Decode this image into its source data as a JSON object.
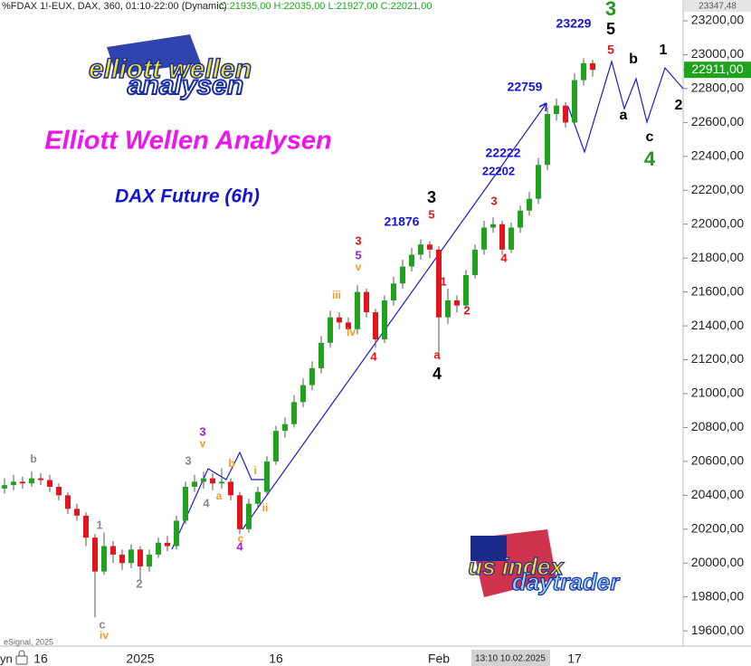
{
  "chart_data": {
    "type": "candlestick",
    "header": "%FDAX 1!-EUX, DAX, 360, 01:10-22:00 (Dynamic)",
    "ohlc_label": "O:21935,00 H:22035,00 L:21927,00 C:22021,00",
    "title": "Elliott Wellen Analysen",
    "subtitle": "DAX Future (6h)",
    "logo_top": [
      "elliott wellen",
      "analysen"
    ],
    "logo_bottom": [
      "us index",
      "daytrader"
    ],
    "source": "eSignal, 2025",
    "axis_top_label": "23347,48",
    "last_price_label": "22911,00",
    "crosshair_label": "13:10 10.02.2025",
    "axis_left_cut": "yn",
    "up_color": "#1fa31f",
    "down_color": "#e3141b",
    "categories": [
      null,
      null,
      null,
      null,
      "16",
      null,
      null,
      null,
      null,
      null,
      null,
      null,
      null,
      null,
      null,
      "2025",
      null,
      null,
      null,
      null,
      null,
      null,
      null,
      null,
      null,
      null,
      null,
      null,
      null,
      null,
      "16",
      null,
      null,
      null,
      null,
      null,
      null,
      null,
      null,
      null,
      null,
      null,
      null,
      null,
      null,
      null,
      null,
      null,
      "Feb",
      null,
      null,
      null,
      null,
      null,
      null,
      null,
      null,
      null,
      null,
      null,
      null,
      null,
      null,
      "17",
      null,
      null
    ],
    "open": [
      20440,
      20460,
      20480,
      20470,
      20500,
      20490,
      20450,
      20400,
      20320,
      20280,
      20150,
      19950,
      20100,
      20050,
      20000,
      20080,
      19980,
      20050,
      20120,
      20100,
      20250,
      20450,
      20480,
      20500,
      20470,
      20480,
      20400,
      20200,
      20350,
      20420,
      20600,
      20780,
      20820,
      20950,
      21050,
      21150,
      21300,
      21450,
      21420,
      21380,
      21600,
      21480,
      21320,
      21550,
      21650,
      21750,
      21820,
      21880,
      21850,
      21450,
      21550,
      21520,
      21700,
      21850,
      21980,
      22000,
      21850,
      21980,
      22080,
      22150,
      22350,
      22650,
      22700,
      22600,
      22850,
      22950
    ],
    "high": [
      20500,
      20520,
      20510,
      20540,
      20530,
      20520,
      20470,
      20420,
      20350,
      20300,
      20170,
      20180,
      20130,
      20080,
      20110,
      20100,
      20080,
      20150,
      20160,
      20280,
      20480,
      20520,
      20540,
      20530,
      20560,
      20500,
      20420,
      20380,
      20450,
      20630,
      20810,
      20860,
      20990,
      21090,
      21190,
      21340,
      21490,
      21480,
      21450,
      21640,
      21620,
      21500,
      21580,
      21690,
      21790,
      21860,
      21910,
      21900,
      21870,
      21620,
      21580,
      21730,
      21880,
      22020,
      22040,
      22020,
      22010,
      22110,
      22190,
      22390,
      22690,
      22740,
      22720,
      22890,
      22980,
      22970
    ],
    "low": [
      20410,
      20430,
      20440,
      20450,
      20460,
      20420,
      20370,
      20290,
      20250,
      20100,
      19680,
      19930,
      20000,
      19960,
      19970,
      19900,
      19950,
      20030,
      20070,
      20080,
      20230,
      20420,
      20440,
      20430,
      20440,
      20370,
      20170,
      20180,
      20320,
      20400,
      20580,
      20740,
      20800,
      20920,
      21020,
      21120,
      21270,
      21380,
      21340,
      21350,
      21450,
      21270,
      21300,
      21520,
      21620,
      21720,
      21790,
      21800,
      21200,
      21410,
      21480,
      21500,
      21680,
      21820,
      21950,
      21820,
      21830,
      21950,
      22050,
      22120,
      22320,
      22610,
      22570,
      22580,
      22820,
      22870
    ],
    "close": [
      20460,
      20480,
      20470,
      20500,
      20490,
      20450,
      20400,
      20320,
      20280,
      20150,
      19950,
      20100,
      20050,
      20000,
      20080,
      19980,
      20050,
      20120,
      20100,
      20250,
      20450,
      20480,
      20500,
      20470,
      20480,
      20400,
      20200,
      20350,
      20420,
      20600,
      20780,
      20820,
      20950,
      21050,
      21150,
      21300,
      21450,
      21420,
      21380,
      21600,
      21480,
      21320,
      21550,
      21650,
      21750,
      21820,
      21880,
      21850,
      21450,
      21550,
      21520,
      21700,
      21850,
      21980,
      22000,
      21850,
      21980,
      22080,
      22150,
      22350,
      22650,
      22700,
      22600,
      22850,
      22950,
      22911
    ],
    "ylim": [
      19510,
      23323
    ],
    "yticks": [
      {
        "value": 19600,
        "label": "19600,00"
      },
      {
        "value": 19800,
        "label": "19800,00"
      },
      {
        "value": 20000,
        "label": "20000,00"
      },
      {
        "value": 20200,
        "label": "20200,00"
      },
      {
        "value": 20400,
        "label": "20400,00"
      },
      {
        "value": 20600,
        "label": "20600,00"
      },
      {
        "value": 20800,
        "label": "20800,00"
      },
      {
        "value": 21000,
        "label": "21000,00"
      },
      {
        "value": 21200,
        "label": "21200,00"
      },
      {
        "value": 21400,
        "label": "21400,00"
      },
      {
        "value": 21600,
        "label": "21600,00"
      },
      {
        "value": 21800,
        "label": "21800,00"
      },
      {
        "value": 22000,
        "label": "22000,00"
      },
      {
        "value": 22200,
        "label": "22200,00"
      },
      {
        "value": 22400,
        "label": "22400,00"
      },
      {
        "value": 22600,
        "label": "22600,00"
      },
      {
        "value": 22800,
        "label": "22800,00"
      },
      {
        "value": 23000,
        "label": "23000,00"
      },
      {
        "value": 23200,
        "label": "23200,00"
      }
    ],
    "annotations": [
      {
        "text": "b",
        "color": "#8a8a8a"
      },
      {
        "text": "1",
        "color": "#8a8a8a"
      },
      {
        "text": "c",
        "color": "#8a8a8a"
      },
      {
        "text": "iv",
        "color": "#f39a1e"
      },
      {
        "text": "2",
        "color": "#8a8a8a"
      },
      {
        "text": "3",
        "color": "#8a8a8a"
      },
      {
        "text": "4",
        "color": "#8a8a8a"
      },
      {
        "text": "3",
        "color": "#9b1fd6"
      },
      {
        "text": "v",
        "color": "#f39a1e"
      },
      {
        "text": "b",
        "color": "#f39a1e"
      },
      {
        "text": "a",
        "color": "#f39a1e"
      },
      {
        "text": "i",
        "color": "#f39a1e"
      },
      {
        "text": "ii",
        "color": "#f39a1e"
      },
      {
        "text": "c",
        "color": "#f39a1e"
      },
      {
        "text": "4",
        "color": "#9b1fd6"
      },
      {
        "text": "iii",
        "color": "#f39a1e"
      },
      {
        "text": "iv",
        "color": "#f39a1e"
      },
      {
        "text": "3",
        "color": "#e3141b"
      },
      {
        "text": "5",
        "color": "#9b1fd6"
      },
      {
        "text": "v",
        "color": "#f39a1e"
      },
      {
        "text": "4",
        "color": "#e3141b"
      },
      {
        "text": "21876",
        "color": "#1414e0"
      },
      {
        "text": "3",
        "color": "#000000"
      },
      {
        "text": "5",
        "color": "#e3141b"
      },
      {
        "text": "1",
        "color": "#e3141b"
      },
      {
        "text": "2",
        "color": "#e3141b"
      },
      {
        "text": "a",
        "color": "#e3141b"
      },
      {
        "text": "4",
        "color": "#000000"
      },
      {
        "text": "3",
        "color": "#e3141b"
      },
      {
        "text": "4",
        "color": "#e3141b"
      },
      {
        "text": "22222",
        "color": "#1414e0"
      },
      {
        "text": "22202",
        "color": "#1414e0"
      },
      {
        "text": "22759",
        "color": "#1414e0"
      },
      {
        "text": "23229",
        "color": "#1414e0"
      },
      {
        "text": "3",
        "color": "#1f9a1f"
      },
      {
        "text": "5",
        "color": "#000000"
      },
      {
        "text": "5",
        "color": "#e3141b"
      },
      {
        "text": "b",
        "color": "#000000"
      },
      {
        "text": "1",
        "color": "#000000"
      },
      {
        "text": "a",
        "color": "#000000"
      },
      {
        "text": "2",
        "color": "#000000"
      },
      {
        "text": "c",
        "color": "#000000"
      },
      {
        "text": "4",
        "color": "#1f9a1f"
      }
    ]
  }
}
